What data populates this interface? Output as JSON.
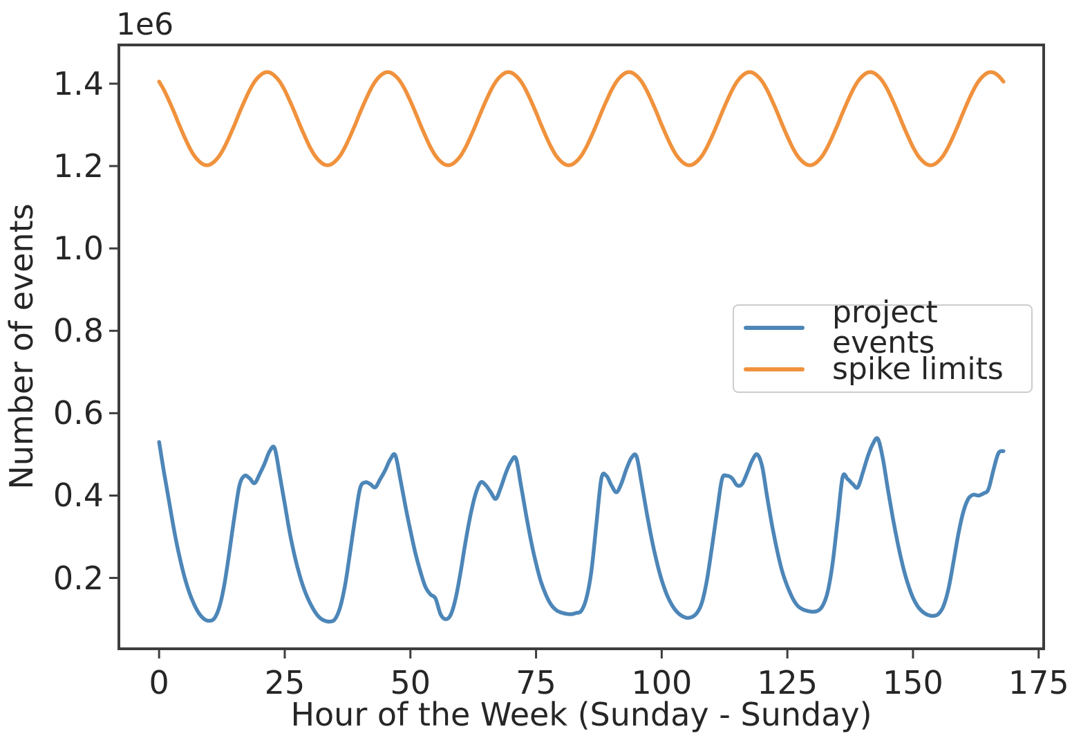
{
  "figure": {
    "offset_text": "1e6",
    "xlabel": "Hour of the Week (Sunday - Sunday)",
    "ylabel": "Number of events",
    "background_color": "#ffffff",
    "spine_color": "#3d3d3d",
    "text_color": "#262626"
  },
  "axis": {
    "x_tick_labels": [
      "0",
      "25",
      "50",
      "75",
      "100",
      "125",
      "150",
      "175"
    ],
    "x_tick_values": [
      0,
      25,
      50,
      75,
      100,
      125,
      150,
      175
    ],
    "y_tick_labels": [
      "0.2",
      "0.4",
      "0.6",
      "0.8",
      "1.0",
      "1.2",
      "1.4"
    ],
    "y_tick_values": [
      0.2,
      0.4,
      0.6,
      0.8,
      1.0,
      1.2,
      1.4
    ]
  },
  "legend": {
    "entries": [
      {
        "label": "project events",
        "color": "#4d86b8"
      },
      {
        "label": "spike limits",
        "color": "#f0923d"
      }
    ]
  },
  "chart_data": {
    "type": "line",
    "title": "",
    "xlabel": "Hour of the Week (Sunday - Sunday)",
    "ylabel": "Number of events",
    "y_scale_note": "y values in units of 1e6 events",
    "xlim": [
      -8,
      176
    ],
    "ylim": [
      0.028,
      1.494
    ],
    "grid": false,
    "legend_position": "center right",
    "x_hours_range": {
      "start": 0,
      "end": 168,
      "step": 1
    },
    "series": [
      {
        "name": "project events",
        "color": "#4d86b8",
        "values": [
          0.53,
          0.455,
          0.385,
          0.315,
          0.255,
          0.205,
          0.165,
          0.135,
          0.113,
          0.1,
          0.096,
          0.102,
          0.13,
          0.185,
          0.265,
          0.35,
          0.425,
          0.448,
          0.442,
          0.43,
          0.452,
          0.478,
          0.508,
          0.515,
          0.45,
          0.38,
          0.31,
          0.252,
          0.205,
          0.168,
          0.14,
          0.118,
          0.103,
          0.096,
          0.094,
          0.1,
          0.128,
          0.182,
          0.262,
          0.345,
          0.418,
          0.432,
          0.428,
          0.42,
          0.44,
          0.462,
          0.488,
          0.498,
          0.44,
          0.375,
          0.315,
          0.26,
          0.215,
          0.178,
          0.16,
          0.15,
          0.112,
          0.1,
          0.11,
          0.15,
          0.215,
          0.29,
          0.355,
          0.405,
          0.432,
          0.425,
          0.408,
          0.392,
          0.42,
          0.455,
          0.482,
          0.49,
          0.425,
          0.355,
          0.29,
          0.235,
          0.19,
          0.158,
          0.135,
          0.122,
          0.116,
          0.113,
          0.112,
          0.115,
          0.12,
          0.15,
          0.215,
          0.33,
          0.442,
          0.448,
          0.425,
          0.408,
          0.43,
          0.465,
          0.492,
          0.495,
          0.43,
          0.36,
          0.295,
          0.24,
          0.195,
          0.16,
          0.135,
          0.118,
          0.108,
          0.103,
          0.105,
          0.115,
          0.14,
          0.195,
          0.275,
          0.36,
          0.44,
          0.448,
          0.442,
          0.425,
          0.428,
          0.455,
          0.485,
          0.5,
          0.47,
          0.395,
          0.325,
          0.265,
          0.215,
          0.18,
          0.152,
          0.133,
          0.124,
          0.12,
          0.118,
          0.12,
          0.132,
          0.165,
          0.235,
          0.34,
          0.445,
          0.44,
          0.428,
          0.42,
          0.455,
          0.495,
          0.525,
          0.538,
          0.49,
          0.415,
          0.345,
          0.282,
          0.228,
          0.185,
          0.152,
          0.13,
          0.117,
          0.11,
          0.108,
          0.112,
          0.13,
          0.17,
          0.235,
          0.305,
          0.36,
          0.392,
          0.402,
          0.4,
          0.405,
          0.415,
          0.462,
          0.503,
          0.508
        ]
      },
      {
        "name": "spike limits",
        "color": "#f0923d",
        "values": [
          1.405,
          1.384,
          1.358,
          1.33,
          1.3,
          1.272,
          1.246,
          1.225,
          1.211,
          1.203,
          1.203,
          1.211,
          1.225,
          1.246,
          1.272,
          1.3,
          1.33,
          1.358,
          1.384,
          1.405,
          1.419,
          1.427,
          1.427,
          1.419,
          1.405,
          1.384,
          1.358,
          1.33,
          1.3,
          1.272,
          1.246,
          1.225,
          1.211,
          1.203,
          1.203,
          1.211,
          1.225,
          1.246,
          1.272,
          1.3,
          1.33,
          1.358,
          1.384,
          1.405,
          1.419,
          1.427,
          1.427,
          1.419,
          1.405,
          1.384,
          1.358,
          1.33,
          1.3,
          1.272,
          1.246,
          1.225,
          1.211,
          1.203,
          1.203,
          1.211,
          1.225,
          1.246,
          1.272,
          1.3,
          1.33,
          1.358,
          1.384,
          1.405,
          1.419,
          1.427,
          1.427,
          1.419,
          1.405,
          1.384,
          1.358,
          1.33,
          1.3,
          1.272,
          1.246,
          1.225,
          1.211,
          1.203,
          1.203,
          1.211,
          1.225,
          1.246,
          1.272,
          1.3,
          1.33,
          1.358,
          1.384,
          1.405,
          1.419,
          1.427,
          1.427,
          1.419,
          1.405,
          1.384,
          1.358,
          1.33,
          1.3,
          1.272,
          1.246,
          1.225,
          1.211,
          1.203,
          1.203,
          1.211,
          1.225,
          1.246,
          1.272,
          1.3,
          1.33,
          1.358,
          1.384,
          1.405,
          1.419,
          1.427,
          1.427,
          1.419,
          1.405,
          1.384,
          1.358,
          1.33,
          1.3,
          1.272,
          1.246,
          1.225,
          1.211,
          1.203,
          1.203,
          1.211,
          1.225,
          1.246,
          1.272,
          1.3,
          1.33,
          1.358,
          1.384,
          1.405,
          1.419,
          1.427,
          1.427,
          1.419,
          1.405,
          1.384,
          1.358,
          1.33,
          1.3,
          1.272,
          1.246,
          1.225,
          1.211,
          1.203,
          1.203,
          1.211,
          1.225,
          1.246,
          1.272,
          1.3,
          1.33,
          1.358,
          1.384,
          1.405,
          1.419,
          1.427,
          1.427,
          1.419,
          1.405
        ]
      }
    ]
  }
}
